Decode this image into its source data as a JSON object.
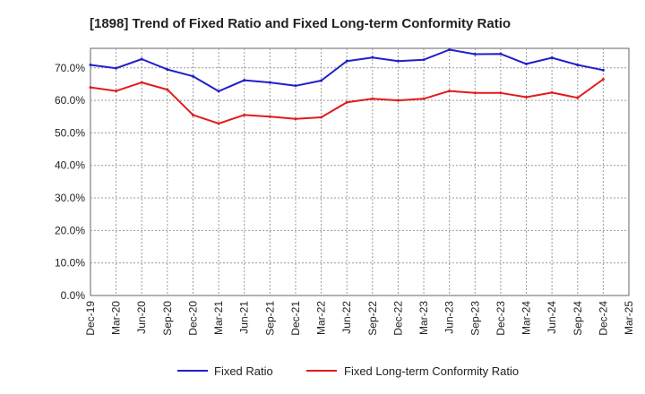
{
  "chart_data": {
    "type": "line",
    "title": "[1898]  Trend of Fixed Ratio and Fixed Long-term Conformity Ratio",
    "xlabel": "",
    "ylabel": "",
    "x_ticks": [
      "Dec-19",
      "Mar-20",
      "Jun-20",
      "Sep-20",
      "Dec-20",
      "Mar-21",
      "Jun-21",
      "Sep-21",
      "Dec-21",
      "Mar-22",
      "Jun-22",
      "Sep-22",
      "Dec-22",
      "Mar-23",
      "Jun-23",
      "Sep-23",
      "Dec-23",
      "Mar-24",
      "Jun-24",
      "Sep-24",
      "Dec-24",
      "Mar-25"
    ],
    "y_ticks": [
      "0.0%",
      "10.0%",
      "20.0%",
      "30.0%",
      "40.0%",
      "50.0%",
      "60.0%",
      "70.0%"
    ],
    "ylim": [
      0,
      76
    ],
    "grid": true,
    "legend_position": "bottom",
    "x": [
      "Dec-19",
      "Mar-20",
      "Jun-20",
      "Sep-20",
      "Dec-20",
      "Mar-21",
      "Jun-21",
      "Sep-21",
      "Dec-21",
      "Mar-22",
      "Jun-22",
      "Sep-22",
      "Dec-22",
      "Mar-23",
      "Jun-23",
      "Sep-23",
      "Dec-23",
      "Mar-24",
      "Jun-24",
      "Sep-24",
      "Dec-24"
    ],
    "series": [
      {
        "name": "Fixed Ratio",
        "color": "#1f1fcc",
        "values": [
          70.9,
          69.9,
          72.7,
          69.5,
          67.4,
          62.8,
          66.2,
          65.5,
          64.5,
          66.1,
          72.1,
          73.2,
          72.1,
          72.5,
          75.6,
          74.2,
          74.3,
          71.2,
          73.1,
          70.9,
          69.3
        ]
      },
      {
        "name": "Fixed Long-term Conformity Ratio",
        "color": "#e31a1c",
        "values": [
          64.0,
          62.9,
          65.5,
          63.3,
          55.5,
          52.9,
          55.5,
          55.0,
          54.3,
          54.8,
          59.4,
          60.5,
          60.0,
          60.5,
          62.9,
          62.3,
          62.3,
          61.0,
          62.4,
          60.8,
          66.5
        ]
      }
    ]
  }
}
